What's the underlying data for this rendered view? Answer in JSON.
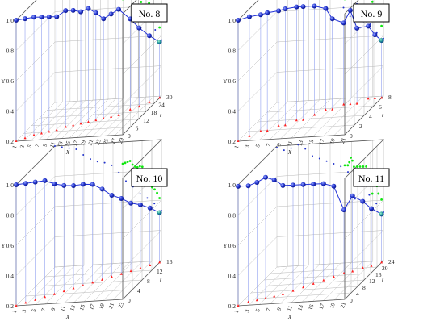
{
  "figure": {
    "type": "3d-scatter-line-grid",
    "colors": {
      "line": "#1f2fd6",
      "sphere": "#1a2bbf",
      "drop_line": "#8f9ff0",
      "floor_point": "#ff2020",
      "wall_projection": "#11e611",
      "back_projection": "#2233cc",
      "grid": "#b9b9b9"
    }
  },
  "chart_data": [
    {
      "type": "scatter",
      "title": "No. 8",
      "ylabel": "Y",
      "xlabel": "X",
      "zlabel": "t",
      "ylim": [
        0.2,
        1.0
      ],
      "yticks": [
        "0.2",
        "0.4",
        "0.6",
        "0.8",
        "1.0"
      ],
      "xticks": [
        "1",
        "3",
        "5",
        "7",
        "9",
        "11",
        "13",
        "15",
        "17",
        "19",
        "21",
        "23",
        "25",
        "27",
        "29"
      ],
      "zticks": [
        "0",
        "6",
        "12",
        "18",
        "24",
        "30"
      ],
      "series": [
        {
          "values": [
            1.0,
            0.99,
            0.98,
            0.97,
            0.96,
            0.95,
            0.97,
            0.96,
            0.94,
            0.95,
            0.91,
            0.86,
            0.88,
            0.9,
            0.8,
            0.72,
            0.64,
            0.57
          ],
          "t": [
            0,
            2,
            4,
            5,
            6,
            7,
            9,
            10,
            11,
            12,
            13,
            14,
            15,
            16,
            20,
            22,
            25,
            28
          ]
        }
      ]
    },
    {
      "type": "scatter",
      "title": "No. 9",
      "ylabel": "Y",
      "xlabel": "X",
      "zlabel": "t",
      "ylim": [
        0.2,
        1.0
      ],
      "yticks": [
        "0.2",
        "0.4",
        "0.6",
        "0.8",
        "1.0"
      ],
      "xticks": [
        "1",
        "3",
        "5",
        "7",
        "9",
        "11",
        "13",
        "15",
        "17",
        "19",
        "21"
      ],
      "zticks": [
        "0",
        "2",
        "4",
        "6",
        "8"
      ],
      "series": [
        {
          "values": [
            1.0,
            0.99,
            0.97,
            0.98,
            0.96,
            0.97,
            0.95,
            0.95,
            0.92,
            0.87,
            0.8,
            0.74,
            0.82,
            0.7,
            0.68,
            0.62,
            0.58
          ],
          "t": [
            0,
            1,
            2,
            2,
            3,
            3,
            4,
            4,
            5,
            6,
            6,
            7,
            7,
            7,
            8,
            8,
            8
          ]
        }
      ]
    },
    {
      "type": "scatter",
      "title": "No. 10",
      "ylabel": "Y",
      "xlabel": "X",
      "zlabel": "t",
      "ylim": [
        0.2,
        1.0
      ],
      "yticks": [
        "0.2",
        "0.4",
        "0.6",
        "0.8",
        "1.0"
      ],
      "xticks": [
        "1",
        "3",
        "5",
        "7",
        "9",
        "11",
        "13",
        "15",
        "17",
        "19",
        "21",
        "23"
      ],
      "zticks": [
        "0",
        "4",
        "8",
        "12",
        "16"
      ],
      "series": [
        {
          "values": [
            1.0,
            0.99,
            0.98,
            0.97,
            0.93,
            0.9,
            0.88,
            0.87,
            0.85,
            0.8,
            0.74,
            0.7,
            0.65,
            0.62,
            0.58,
            0.53
          ],
          "t": [
            0,
            1,
            2,
            3,
            4,
            5,
            6,
            7,
            8,
            9,
            10,
            11,
            12,
            13,
            14,
            15
          ]
        }
      ]
    },
    {
      "type": "scatter",
      "title": "No. 11",
      "ylabel": "Y",
      "xlabel": "X",
      "zlabel": "t",
      "ylim": [
        0.2,
        1.0
      ],
      "yticks": [
        "0.2",
        "0.4",
        "0.6",
        "0.8",
        "1.0"
      ],
      "xticks": [
        "1",
        "3",
        "5",
        "7",
        "9",
        "11",
        "13",
        "15",
        "17",
        "19",
        "21"
      ],
      "zticks": [
        "0",
        "4",
        "8",
        "12",
        "16",
        "20",
        "24"
      ],
      "series": [
        {
          "values": [
            0.99,
            0.97,
            0.98,
            1.0,
            0.97,
            0.92,
            0.9,
            0.88,
            0.86,
            0.84,
            0.8,
            0.62,
            0.7,
            0.64,
            0.58,
            0.52
          ],
          "t": [
            0,
            2,
            3,
            4,
            5,
            6,
            8,
            10,
            12,
            14,
            16,
            18,
            19,
            21,
            22,
            24
          ]
        }
      ]
    }
  ]
}
